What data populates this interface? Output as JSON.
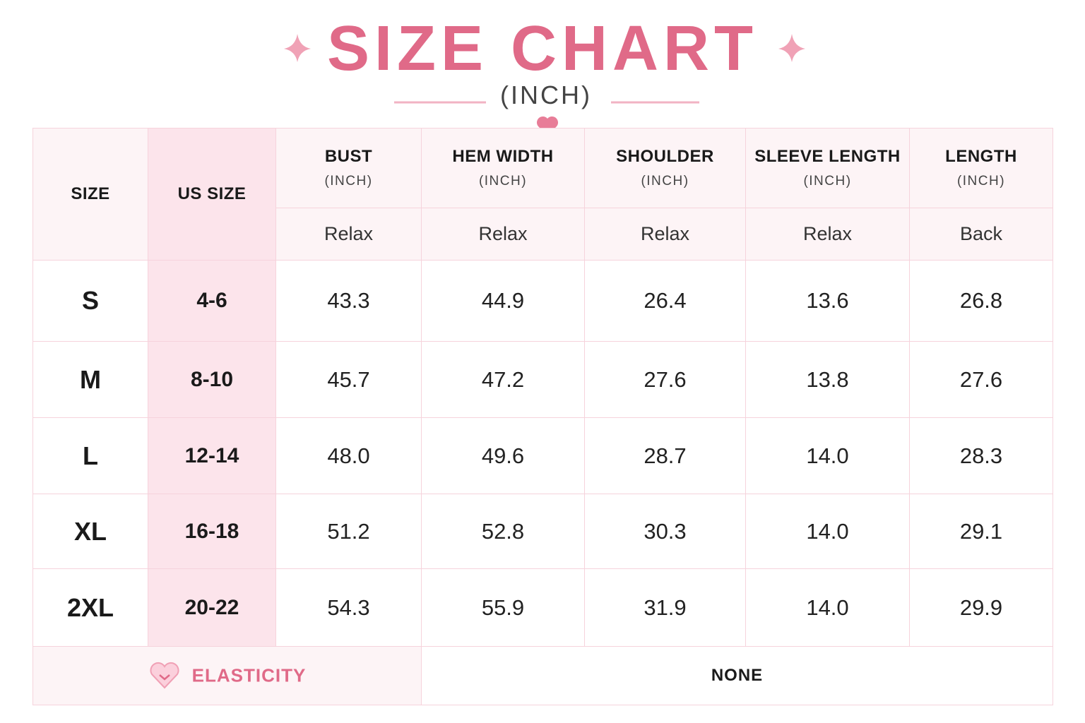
{
  "header": {
    "title": "SIZE CHART",
    "subtitle": "(INCH)"
  },
  "table": {
    "size_header": "SIZE",
    "us_size_header": "US SIZE",
    "columns": [
      {
        "name": "BUST",
        "unit": "(INCH)",
        "fit": "Relax"
      },
      {
        "name": "HEM WIDTH",
        "unit": "(INCH)",
        "fit": "Relax"
      },
      {
        "name": "SHOULDER",
        "unit": "(INCH)",
        "fit": "Relax"
      },
      {
        "name": "SLEEVE LENGTH",
        "unit": "(INCH)",
        "fit": "Relax"
      },
      {
        "name": "LENGTH",
        "unit": "(INCH)",
        "fit": "Back"
      }
    ],
    "rows": [
      {
        "size": "S",
        "us_size": "4-6",
        "values": [
          "43.3",
          "44.9",
          "26.4",
          "13.6",
          "26.8"
        ]
      },
      {
        "size": "M",
        "us_size": "8-10",
        "values": [
          "45.7",
          "47.2",
          "27.6",
          "13.8",
          "27.6"
        ]
      },
      {
        "size": "L",
        "us_size": "12-14",
        "values": [
          "48.0",
          "49.6",
          "28.7",
          "14.0",
          "28.3"
        ]
      },
      {
        "size": "XL",
        "us_size": "16-18",
        "values": [
          "51.2",
          "52.8",
          "30.3",
          "14.0",
          "29.1"
        ]
      },
      {
        "size": "2XL",
        "us_size": "20-22",
        "values": [
          "54.3",
          "55.9",
          "31.9",
          "14.0",
          "29.9"
        ]
      }
    ]
  },
  "footer": {
    "label": "ELASTICITY",
    "value": "NONE"
  }
}
